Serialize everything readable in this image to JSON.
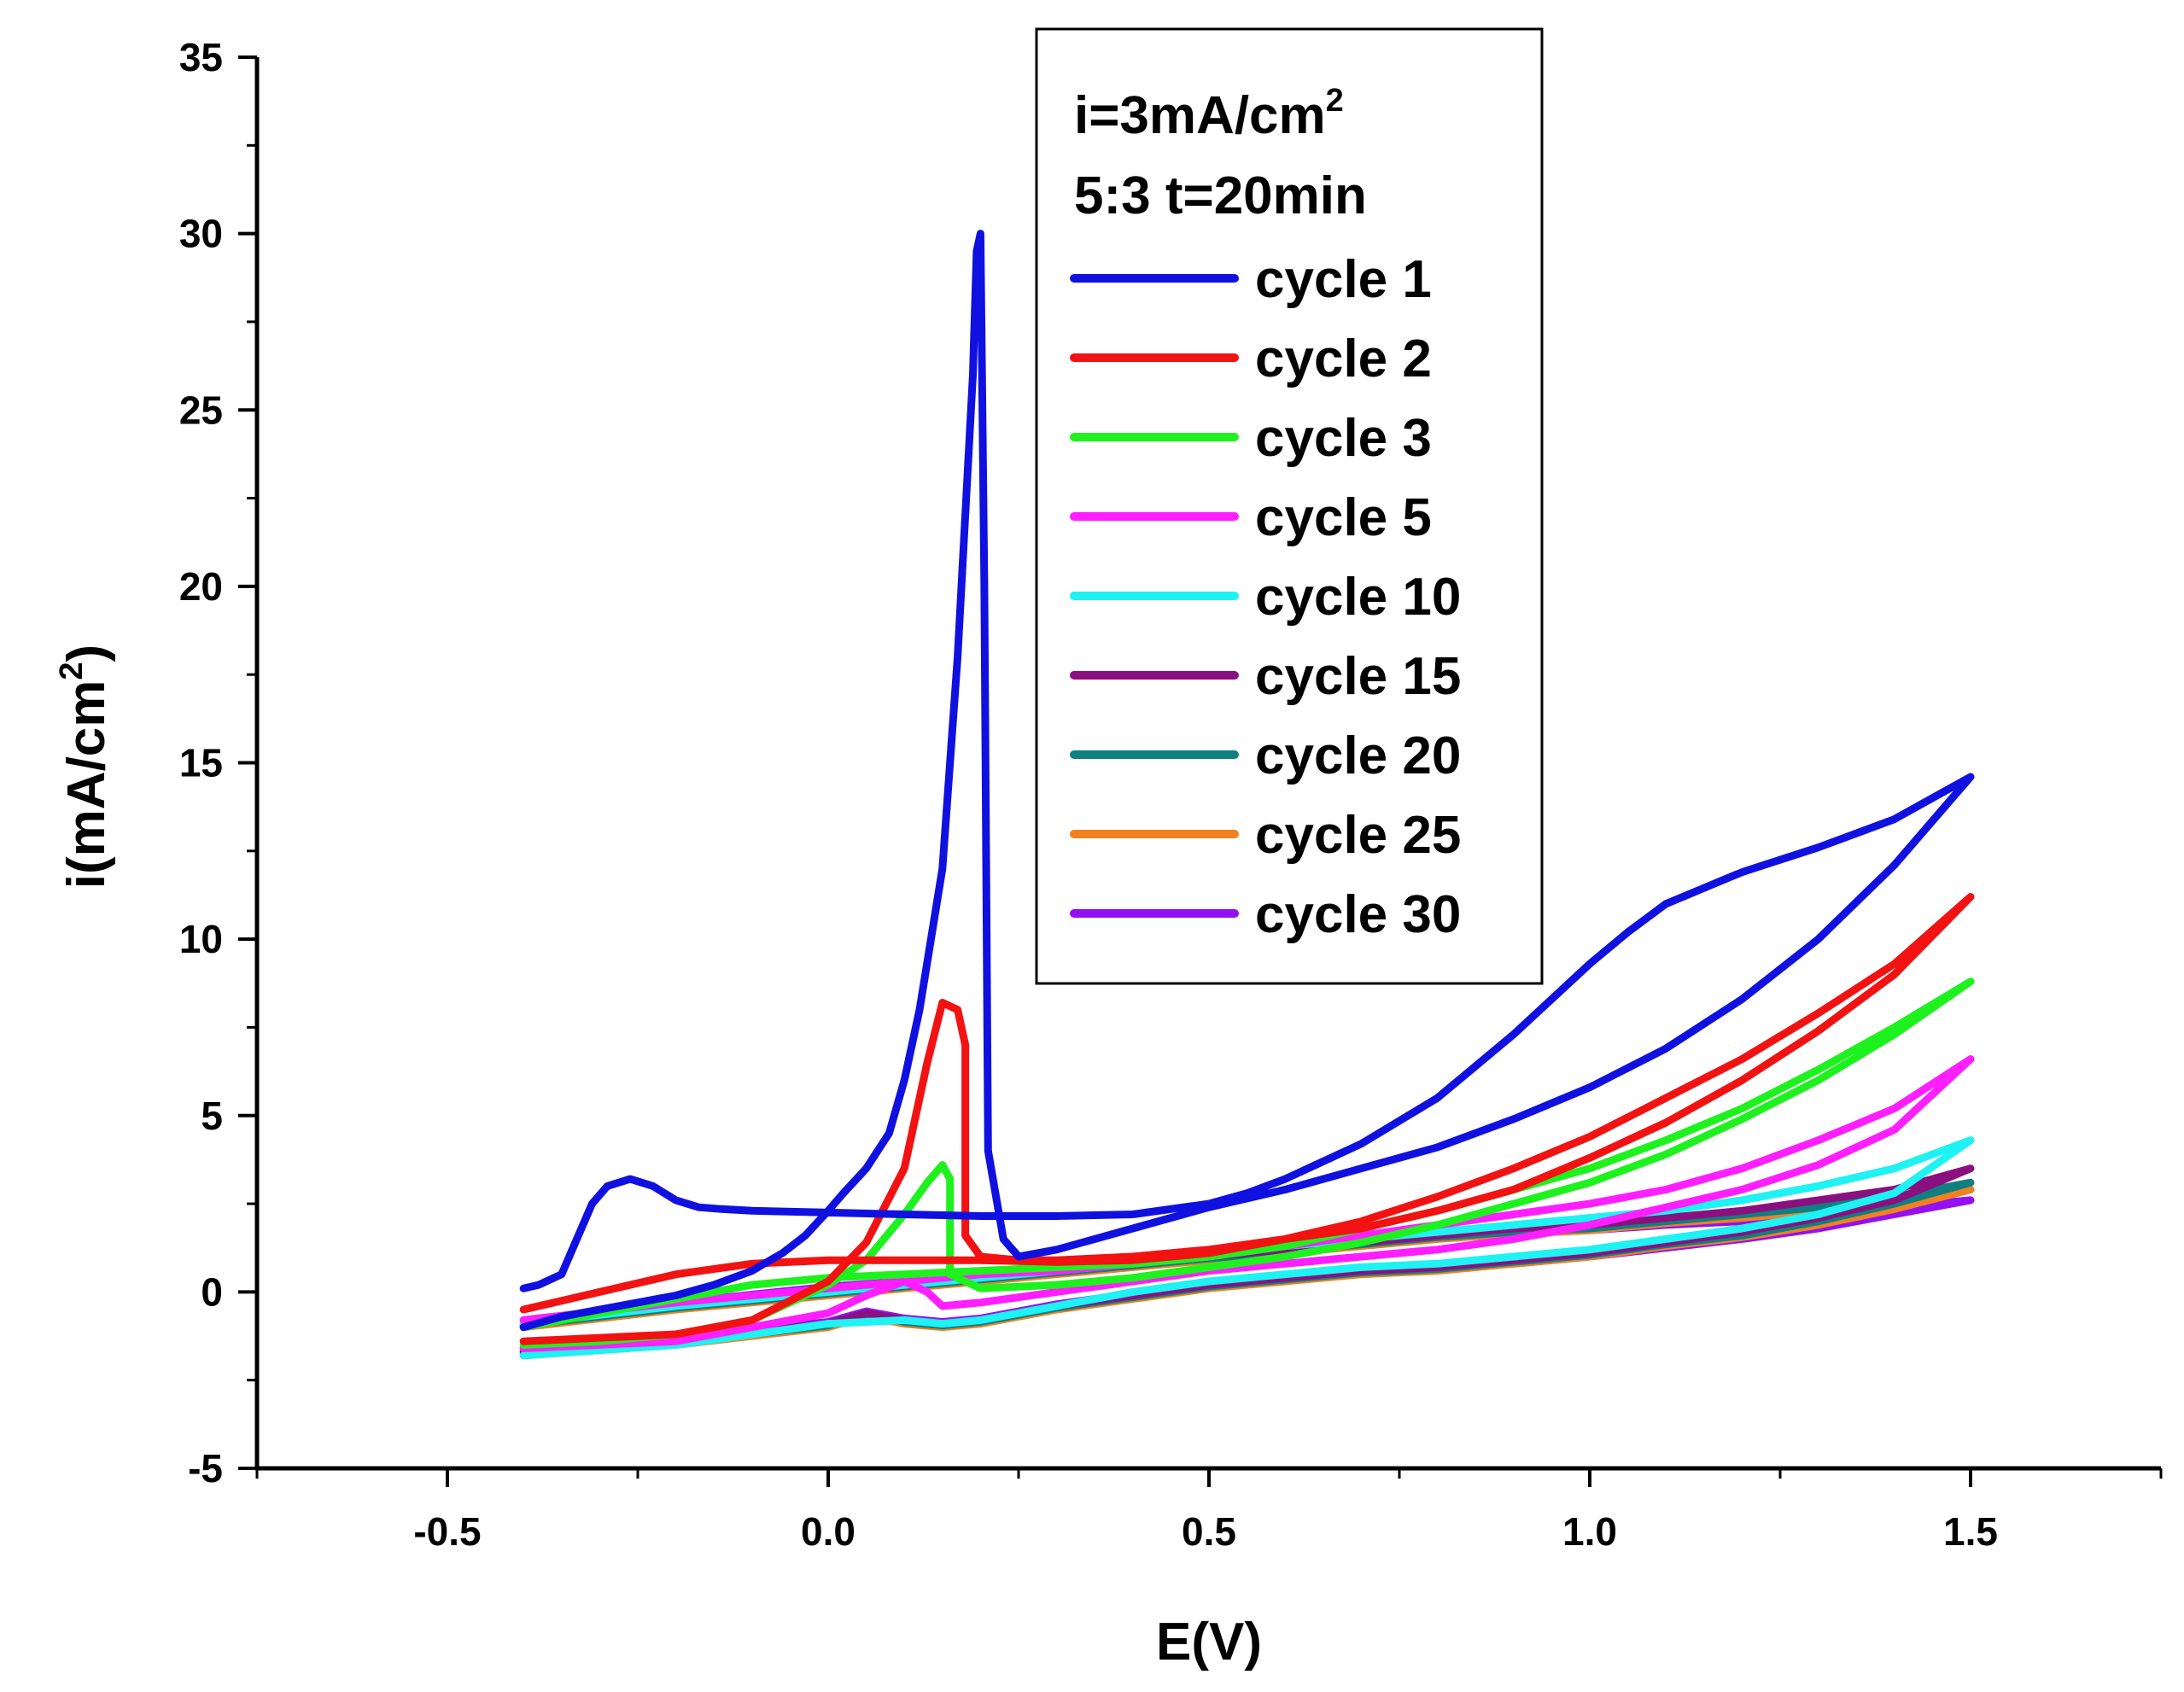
{
  "chart_data": {
    "type": "line",
    "title": "",
    "xlabel": "E(V)",
    "ylabel_parts": [
      "i(mA/cm",
      "2",
      ")"
    ],
    "xlim": [
      -0.75,
      1.75
    ],
    "ylim": [
      -5,
      35
    ],
    "x_ticks": [
      -0.5,
      0.0,
      0.5,
      1.0,
      1.5
    ],
    "x_tick_labels": [
      "-0.5",
      "0.0",
      "0.5",
      "1.0",
      "1.5"
    ],
    "y_ticks": [
      -5,
      0,
      5,
      10,
      15,
      20,
      25,
      30,
      35
    ],
    "y_tick_labels": [
      "-5",
      "0",
      "5",
      "10",
      "15",
      "20",
      "25",
      "30",
      "35"
    ],
    "grid": false,
    "legend": {
      "placement": "top-center",
      "header_line1": [
        "i=3mA/cm",
        "2"
      ],
      "header_line2": "5:3 t=20min"
    },
    "series": [
      {
        "name": "cycle 1",
        "color": "#1010e0",
        "x": [
          -0.4,
          -0.38,
          -0.35,
          -0.33,
          -0.31,
          -0.29,
          -0.26,
          -0.23,
          -0.2,
          -0.17,
          -0.14,
          -0.1,
          0.0,
          0.1,
          0.2,
          0.3,
          0.4,
          0.5,
          0.55,
          0.6,
          0.7,
          0.8,
          0.9,
          1.0,
          1.05,
          1.1,
          1.2,
          1.3,
          1.4,
          1.5,
          1.4,
          1.3,
          1.2,
          1.1,
          1.0,
          0.9,
          0.8,
          0.7,
          0.6,
          0.5,
          0.4,
          0.3,
          0.25,
          0.23,
          0.21,
          0.205,
          0.2,
          0.195,
          0.19,
          0.17,
          0.15,
          0.12,
          0.1,
          0.08,
          0.05,
          0.02,
          0.0,
          -0.03,
          -0.06,
          -0.1,
          -0.15,
          -0.2,
          -0.25,
          -0.3,
          -0.35,
          -0.4
        ],
        "y": [
          0.1,
          0.2,
          0.5,
          1.5,
          2.5,
          3.0,
          3.2,
          3.0,
          2.6,
          2.4,
          2.35,
          2.3,
          2.25,
          2.2,
          2.15,
          2.15,
          2.2,
          2.5,
          2.8,
          3.2,
          4.2,
          5.5,
          7.3,
          9.3,
          10.2,
          11.0,
          11.9,
          12.6,
          13.4,
          14.6,
          12.1,
          10.0,
          8.3,
          6.9,
          5.8,
          4.9,
          4.1,
          3.5,
          2.9,
          2.4,
          1.8,
          1.2,
          1.0,
          1.5,
          4.0,
          20.0,
          30.0,
          29.5,
          26.0,
          18.0,
          12.0,
          8.0,
          6.0,
          4.5,
          3.5,
          2.8,
          2.3,
          1.6,
          1.1,
          0.6,
          0.2,
          -0.1,
          -0.3,
          -0.5,
          -0.7,
          -1.0
        ]
      },
      {
        "name": "cycle 2",
        "color": "#f21212",
        "x": [
          -0.4,
          -0.3,
          -0.2,
          -0.1,
          0.0,
          0.05,
          0.1,
          0.13,
          0.15,
          0.17,
          0.18,
          0.18,
          0.2,
          0.25,
          0.3,
          0.4,
          0.5,
          0.6,
          0.7,
          0.8,
          0.9,
          1.0,
          1.1,
          1.2,
          1.3,
          1.4,
          1.5,
          1.4,
          1.3,
          1.2,
          1.1,
          1.0,
          0.9,
          0.8,
          0.7,
          0.6,
          0.5,
          0.4,
          0.3,
          0.2,
          0.1,
          0.0,
          -0.1,
          -0.2,
          -0.3,
          -0.4
        ],
        "y": [
          -1.4,
          -1.3,
          -1.2,
          -0.8,
          0.3,
          1.4,
          3.5,
          6.5,
          8.2,
          8.0,
          7.0,
          1.6,
          1.0,
          0.9,
          0.9,
          1.0,
          1.2,
          1.5,
          1.8,
          2.3,
          2.9,
          3.8,
          4.8,
          6.0,
          7.4,
          9.0,
          11.2,
          9.3,
          7.9,
          6.6,
          5.5,
          4.4,
          3.5,
          2.7,
          2.0,
          1.5,
          1.1,
          0.9,
          0.85,
          0.9,
          0.9,
          0.9,
          0.8,
          0.5,
          0.0,
          -0.5
        ]
      },
      {
        "name": "cycle 3",
        "color": "#1ef21e",
        "x": [
          -0.4,
          -0.3,
          -0.2,
          -0.1,
          0.0,
          0.05,
          0.1,
          0.13,
          0.15,
          0.16,
          0.16,
          0.2,
          0.3,
          0.4,
          0.5,
          0.6,
          0.7,
          0.8,
          0.9,
          1.0,
          1.1,
          1.2,
          1.3,
          1.4,
          1.5,
          1.4,
          1.3,
          1.2,
          1.1,
          1.0,
          0.9,
          0.8,
          0.7,
          0.6,
          0.5,
          0.4,
          0.3,
          0.2,
          0.1,
          0.0,
          -0.1,
          -0.2,
          -0.3,
          -0.4
        ],
        "y": [
          -1.5,
          -1.4,
          -1.2,
          -0.8,
          0.2,
          0.9,
          2.2,
          3.1,
          3.6,
          3.2,
          0.5,
          0.1,
          0.2,
          0.4,
          0.7,
          1.0,
          1.4,
          1.9,
          2.5,
          3.1,
          3.9,
          4.9,
          6.0,
          7.3,
          8.8,
          7.5,
          6.3,
          5.2,
          4.3,
          3.5,
          2.9,
          2.3,
          1.8,
          1.3,
          1.0,
          0.8,
          0.7,
          0.6,
          0.5,
          0.4,
          0.2,
          -0.2,
          -0.6,
          -1.0
        ]
      },
      {
        "name": "cycle 5",
        "color": "#ff1eff",
        "x": [
          -0.4,
          -0.2,
          0.0,
          0.05,
          0.1,
          0.13,
          0.15,
          0.2,
          0.3,
          0.4,
          0.5,
          0.6,
          0.7,
          0.8,
          0.9,
          1.0,
          1.1,
          1.2,
          1.3,
          1.4,
          1.5,
          1.4,
          1.3,
          1.2,
          1.1,
          1.0,
          0.9,
          0.8,
          0.7,
          0.6,
          0.5,
          0.4,
          0.3,
          0.2,
          0.1,
          0.0,
          -0.2,
          -0.4
        ],
        "y": [
          -1.6,
          -1.4,
          -0.6,
          -0.1,
          0.3,
          0.0,
          -0.4,
          -0.3,
          0.0,
          0.3,
          0.6,
          0.8,
          1.0,
          1.2,
          1.5,
          1.9,
          2.4,
          2.9,
          3.6,
          4.6,
          6.6,
          5.2,
          4.3,
          3.5,
          2.9,
          2.5,
          2.2,
          1.9,
          1.6,
          1.3,
          1.0,
          0.8,
          0.6,
          0.5,
          0.3,
          0.1,
          -0.3,
          -0.8
        ]
      },
      {
        "name": "cycle 10",
        "color": "#1ef2f2",
        "x": [
          -0.4,
          -0.2,
          0.0,
          0.1,
          0.15,
          0.2,
          0.3,
          0.4,
          0.5,
          0.6,
          0.7,
          0.8,
          0.9,
          1.0,
          1.1,
          1.2,
          1.3,
          1.4,
          1.5,
          1.4,
          1.3,
          1.2,
          1.1,
          1.0,
          0.9,
          0.8,
          0.7,
          0.6,
          0.5,
          0.4,
          0.3,
          0.2,
          0.1,
          0.0,
          -0.2,
          -0.4
        ],
        "y": [
          -1.8,
          -1.5,
          -0.9,
          -0.8,
          -0.9,
          -0.8,
          -0.4,
          0.0,
          0.3,
          0.5,
          0.7,
          0.8,
          1.0,
          1.2,
          1.5,
          1.8,
          2.2,
          2.8,
          4.3,
          3.5,
          3.0,
          2.6,
          2.3,
          2.1,
          1.9,
          1.7,
          1.5,
          1.3,
          1.0,
          0.8,
          0.6,
          0.4,
          0.2,
          0.0,
          -0.4,
          -0.9
        ]
      },
      {
        "name": "cycle 15",
        "color": "#8a1080",
        "x": [
          -0.4,
          -0.2,
          0.0,
          0.05,
          0.1,
          0.15,
          0.2,
          0.3,
          0.4,
          0.5,
          0.6,
          0.7,
          0.8,
          0.9,
          1.0,
          1.1,
          1.2,
          1.3,
          1.4,
          1.5,
          1.4,
          1.3,
          1.2,
          1.1,
          1.0,
          0.9,
          0.8,
          0.7,
          0.6,
          0.5,
          0.4,
          0.3,
          0.2,
          0.1,
          0.0,
          -0.2,
          -0.4
        ],
        "y": [
          -1.7,
          -1.4,
          -0.9,
          -0.6,
          -0.8,
          -0.9,
          -0.8,
          -0.4,
          -0.1,
          0.2,
          0.4,
          0.6,
          0.7,
          0.9,
          1.1,
          1.4,
          1.7,
          2.1,
          2.6,
          3.5,
          2.9,
          2.6,
          2.3,
          2.1,
          1.9,
          1.8,
          1.6,
          1.4,
          1.2,
          1.0,
          0.8,
          0.6,
          0.4,
          0.2,
          0.0,
          -0.4,
          -0.9
        ]
      },
      {
        "name": "cycle 20",
        "color": "#0f7f7f",
        "x": [
          -0.4,
          -0.2,
          0.0,
          0.05,
          0.1,
          0.15,
          0.2,
          0.3,
          0.4,
          0.5,
          0.6,
          0.7,
          0.8,
          0.9,
          1.0,
          1.1,
          1.2,
          1.3,
          1.4,
          1.5,
          1.4,
          1.3,
          1.2,
          1.1,
          1.0,
          0.9,
          0.8,
          0.7,
          0.6,
          0.5,
          0.4,
          0.3,
          0.2,
          0.1,
          0.0,
          -0.2,
          -0.4
        ],
        "y": [
          -1.75,
          -1.45,
          -0.95,
          -0.65,
          -0.85,
          -0.95,
          -0.85,
          -0.45,
          -0.15,
          0.15,
          0.35,
          0.55,
          0.65,
          0.85,
          1.05,
          1.35,
          1.6,
          2.0,
          2.5,
          3.1,
          2.7,
          2.4,
          2.2,
          2.0,
          1.8,
          1.7,
          1.55,
          1.35,
          1.15,
          0.95,
          0.75,
          0.55,
          0.35,
          0.15,
          -0.05,
          -0.45,
          -0.95
        ]
      },
      {
        "name": "cycle 25",
        "color": "#f2801e",
        "x": [
          -0.4,
          -0.2,
          0.0,
          0.05,
          0.1,
          0.15,
          0.2,
          0.3,
          0.4,
          0.5,
          0.6,
          0.7,
          0.8,
          0.9,
          1.0,
          1.1,
          1.2,
          1.3,
          1.4,
          1.5,
          1.4,
          1.3,
          1.2,
          1.1,
          1.0,
          0.9,
          0.8,
          0.7,
          0.6,
          0.5,
          0.4,
          0.3,
          0.2,
          0.1,
          0.0,
          -0.2,
          -0.4
        ],
        "y": [
          -1.8,
          -1.5,
          -1.0,
          -0.7,
          -0.9,
          -1.0,
          -0.9,
          -0.5,
          -0.2,
          0.1,
          0.3,
          0.5,
          0.6,
          0.8,
          1.0,
          1.3,
          1.55,
          1.9,
          2.35,
          2.9,
          2.55,
          2.3,
          2.1,
          1.95,
          1.75,
          1.65,
          1.5,
          1.3,
          1.1,
          0.9,
          0.7,
          0.5,
          0.3,
          0.1,
          -0.1,
          -0.5,
          -1.0
        ]
      },
      {
        "name": "cycle 30",
        "color": "#9410f2",
        "x": [
          -0.4,
          -0.2,
          0.0,
          0.05,
          0.1,
          0.15,
          0.2,
          0.3,
          0.4,
          0.5,
          0.6,
          0.7,
          0.8,
          0.9,
          1.0,
          1.1,
          1.2,
          1.3,
          1.4,
          1.5,
          1.4,
          1.3,
          1.2,
          1.1,
          1.0,
          0.9,
          0.8,
          0.7,
          0.6,
          0.5,
          0.4,
          0.3,
          0.2,
          0.1,
          0.0,
          -0.2,
          -0.4
        ],
        "y": [
          -1.6,
          -1.3,
          -0.85,
          -0.55,
          -0.75,
          -0.85,
          -0.75,
          -0.35,
          -0.05,
          0.2,
          0.4,
          0.55,
          0.65,
          0.8,
          1.0,
          1.25,
          1.5,
          1.8,
          2.2,
          2.6,
          2.4,
          2.2,
          2.0,
          1.9,
          1.75,
          1.65,
          1.55,
          1.4,
          1.2,
          1.0,
          0.8,
          0.6,
          0.45,
          0.3,
          0.15,
          -0.3,
          -0.8
        ]
      }
    ]
  }
}
